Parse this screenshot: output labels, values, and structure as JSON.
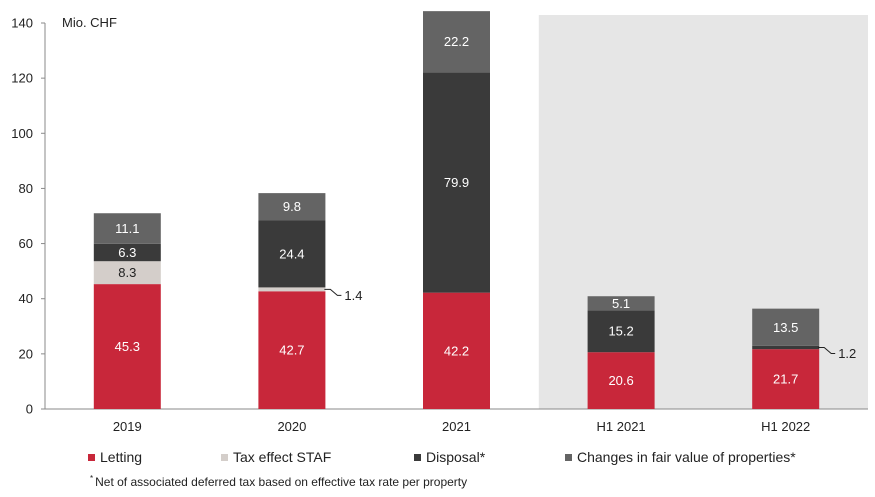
{
  "chart_data": {
    "type": "bar",
    "stacked": true,
    "unit_label": "Mio. CHF",
    "categories": [
      "2019",
      "2020",
      "2021",
      "H1 2021",
      "H1 2022"
    ],
    "highlighted_categories": [
      "H1 2021",
      "H1 2022"
    ],
    "ylim": [
      0,
      140
    ],
    "yticks": [
      "0",
      "20",
      "40",
      "60",
      "80",
      "100",
      "120",
      "140"
    ],
    "series": [
      {
        "name": "Letting",
        "color": "#c8273a",
        "values": [
          45.3,
          42.7,
          42.2,
          20.6,
          21.7
        ],
        "labels": [
          "45.3",
          "42.7",
          "42.2",
          "20.6",
          "21.7"
        ]
      },
      {
        "name": "Tax effect STAF",
        "color": "#d4ceca",
        "values": [
          8.3,
          1.4,
          0,
          0,
          0
        ],
        "labels": [
          "8.3",
          "1.4",
          "",
          "",
          ""
        ]
      },
      {
        "name": "Disposal*",
        "color": "#3a3a3a",
        "values": [
          6.3,
          24.4,
          79.9,
          15.2,
          1.2
        ],
        "labels": [
          "6.3",
          "24.4",
          "79.9",
          "15.2",
          "1.2"
        ]
      },
      {
        "name": "Changes in fair value of properties*",
        "color": "#646464",
        "values": [
          11.1,
          9.8,
          22.2,
          5.1,
          13.5
        ],
        "labels": [
          "11.1",
          "9.8",
          "22.2",
          "5.1",
          "13.5"
        ]
      }
    ],
    "legend_position": "bottom",
    "grid": false
  },
  "footnote": {
    "marker": "*",
    "text": "Net of associated deferred tax based on effective tax rate per property"
  }
}
